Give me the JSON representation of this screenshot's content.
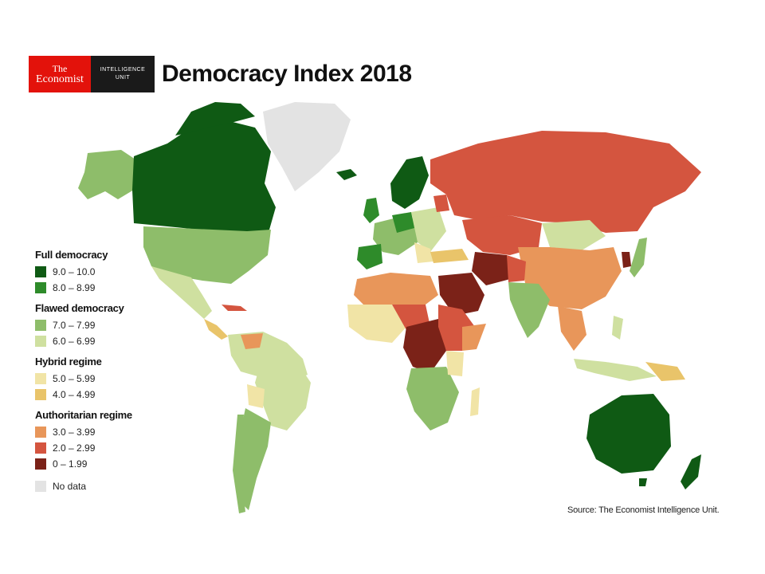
{
  "header": {
    "logo_line1": "The",
    "logo_line2": "Economist",
    "logo_unit_line1": "INTELLIGENCE",
    "logo_unit_line2": "UNIT",
    "title": "Democracy Index 2018"
  },
  "legend": {
    "groups": [
      {
        "heading": "Full democracy",
        "items": [
          {
            "label": "9.0 – 10.0",
            "color": "#0f5a14"
          },
          {
            "label": "8.0 – 8.99",
            "color": "#2e8b2a"
          }
        ]
      },
      {
        "heading": "Flawed democracy",
        "items": [
          {
            "label": "7.0 – 7.99",
            "color": "#8ebd6a"
          },
          {
            "label": "6.0 – 6.99",
            "color": "#cfe0a0"
          }
        ]
      },
      {
        "heading": "Hybrid regime",
        "items": [
          {
            "label": "5.0 – 5.99",
            "color": "#f1e4a6"
          },
          {
            "label": "4.0 – 4.99",
            "color": "#e9c46a"
          }
        ]
      },
      {
        "heading": "Authoritarian regime",
        "items": [
          {
            "label": "3.0 – 3.99",
            "color": "#e8965a"
          },
          {
            "label": "2.0 – 2.99",
            "color": "#d4553f"
          },
          {
            "label": "0 – 1.99",
            "color": "#7b2218"
          }
        ]
      }
    ],
    "no_data": {
      "label": "No data",
      "color": "#e3e3e3"
    }
  },
  "source": "Source: The Economist Intelligence Unit."
}
